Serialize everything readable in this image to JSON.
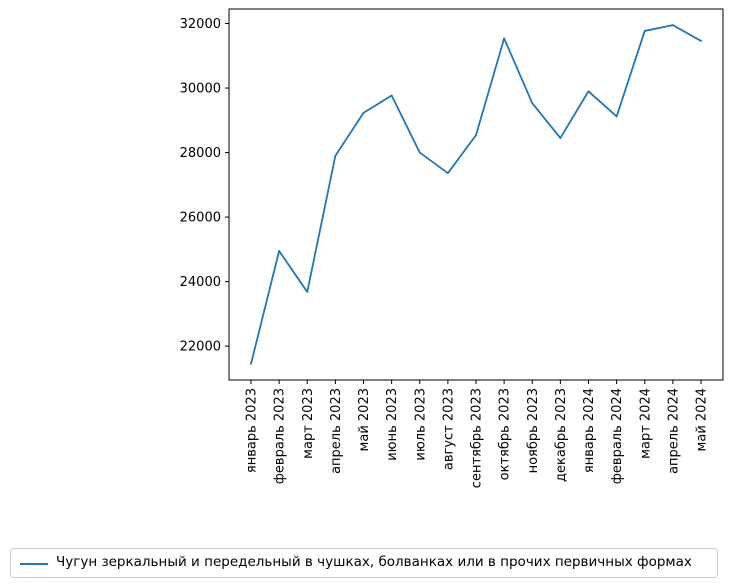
{
  "chart_data": {
    "type": "line",
    "categories": [
      "январь 2023",
      "февраль 2023",
      "март 2023",
      "апрель 2023",
      "май 2023",
      "июнь 2023",
      "июль 2023",
      "август 2023",
      "сентябрь 2023",
      "октябрь 2023",
      "ноябрь 2023",
      "декабрь 2023",
      "январь 2024",
      "февраль 2024",
      "март 2024",
      "апрель 2024",
      "май 2024"
    ],
    "series": [
      {
        "name": "Чугун зеркальный и передельный в чушках, болванках или в прочих первичных формах",
        "color": "#1f77b4",
        "values": [
          21450,
          24950,
          23680,
          27900,
          29230,
          29770,
          28000,
          27360,
          28540,
          31540,
          29530,
          28450,
          29900,
          29120,
          31770,
          31950,
          31460
        ]
      }
    ],
    "yticks": [
      22000,
      24000,
      26000,
      28000,
      30000,
      32000
    ],
    "ylim": [
      20950,
      32450
    ],
    "grid": false,
    "legend_position": "bottom-center"
  }
}
